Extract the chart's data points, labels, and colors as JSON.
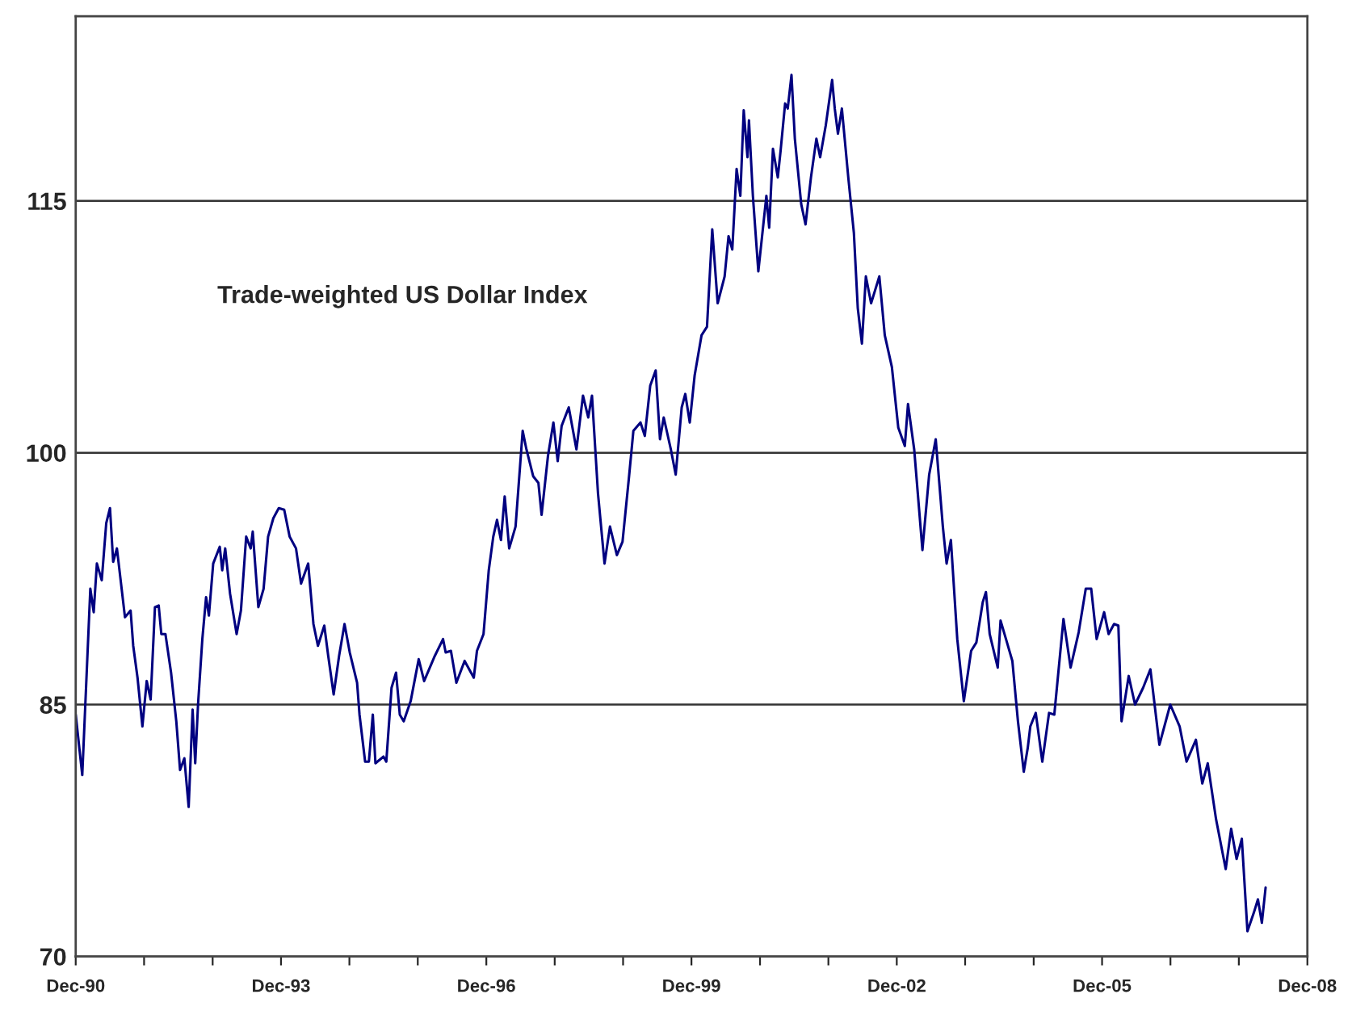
{
  "chart_data": {
    "type": "line",
    "title": "Trade-weighted US Dollar Index",
    "x": [
      "1990-12-01",
      "1991-01-05",
      "1991-02-17",
      "1991-03-07",
      "1991-03-24",
      "1991-04-19",
      "1991-05-13",
      "1991-06-02",
      "1991-06-19",
      "1991-07-09",
      "1991-08-21",
      "1991-09-20",
      "1991-10-04",
      "1991-10-27",
      "1991-11-22",
      "1991-12-15",
      "1992-01-05",
      "1992-01-28",
      "1992-02-17",
      "1992-03-02",
      "1992-03-24",
      "1992-04-23",
      "1992-05-21",
      "1992-06-10",
      "1992-07-03",
      "1992-07-26",
      "1992-08-16",
      "1992-08-30",
      "1992-09-14",
      "1992-10-07",
      "1992-10-27",
      "1992-11-11",
      "1992-12-04",
      "1993-01-08",
      "1993-01-21",
      "1993-02-06",
      "1993-03-04",
      "1993-04-08",
      "1993-05-01",
      "1993-05-29",
      "1993-06-22",
      "1993-07-03",
      "1993-08-02",
      "1993-08-30",
      "1993-09-23",
      "1993-10-21",
      "1993-11-19",
      "1993-12-18",
      "1994-01-16",
      "1994-02-19",
      "1994-03-18",
      "1994-04-25",
      "1994-05-23",
      "1994-06-16",
      "1994-07-20",
      "1994-08-10",
      "1994-09-08",
      "1994-10-07",
      "1994-11-05",
      "1994-12-03",
      "1995-01-11",
      "1995-01-24",
      "1995-02-23",
      "1995-03-15",
      "1995-04-05",
      "1995-04-19",
      "1995-06-01",
      "1995-06-16",
      "1995-07-14",
      "1995-08-07",
      "1995-08-27",
      "1995-09-17",
      "1995-10-24",
      "1995-12-06",
      "1996-01-04",
      "1996-03-01",
      "1996-04-14",
      "1996-04-28",
      "1996-05-26",
      "1996-06-24",
      "1996-08-07",
      "1996-09-25",
      "1996-10-12",
      "1996-11-16",
      "1996-12-14",
      "1997-01-07",
      "1997-01-27",
      "1997-02-17",
      "1997-03-09",
      "1997-04-02",
      "1997-05-06",
      "1997-06-13",
      "1997-07-03",
      "1997-08-08",
      "1997-09-05",
      "1997-09-22",
      "1997-10-26",
      "1997-11-24",
      "1997-12-17",
      "1998-01-07",
      "1998-02-14",
      "1998-03-27",
      "1998-05-01",
      "1998-05-29",
      "1998-06-18",
      "1998-07-20",
      "1998-08-24",
      "1998-09-22",
      "1998-10-29",
      "1998-11-28",
      "1999-01-02",
      "1999-01-25",
      "1999-03-04",
      "1999-03-27",
      "1999-04-25",
      "1999-05-24",
      "1999-06-16",
      "1999-07-06",
      "1999-08-13",
      "1999-09-08",
      "1999-10-10",
      "1999-10-29",
      "1999-11-22",
      "1999-12-18",
      "2000-01-24",
      "2000-02-22",
      "2000-03-21",
      "2000-04-19",
      "2000-05-26",
      "2000-06-16",
      "2000-07-06",
      "2000-07-29",
      "2000-08-18",
      "2000-09-05",
      "2000-09-25",
      "2000-10-03",
      "2000-10-24",
      "2000-11-22",
      "2000-12-15",
      "2001-01-04",
      "2001-01-19",
      "2001-02-08",
      "2001-03-06",
      "2001-03-21",
      "2001-04-14",
      "2001-04-28",
      "2001-05-18",
      "2001-06-05",
      "2001-07-09",
      "2001-08-01",
      "2001-08-30",
      "2001-09-28",
      "2001-10-18",
      "2001-11-17",
      "2001-12-21",
      "2002-01-04",
      "2002-01-21",
      "2002-02-11",
      "2002-03-18",
      "2002-04-16",
      "2002-05-07",
      "2002-05-29",
      "2002-06-19",
      "2002-07-17",
      "2002-08-30",
      "2002-09-28",
      "2002-11-05",
      "2002-12-09",
      "2003-01-13",
      "2003-01-30",
      "2003-03-04",
      "2003-04-17",
      "2003-05-23",
      "2003-06-27",
      "2003-08-04",
      "2003-08-24",
      "2003-09-16",
      "2003-10-20",
      "2003-11-24",
      "2004-01-02",
      "2004-01-30",
      "2004-03-04",
      "2004-03-21",
      "2004-04-10",
      "2004-05-23",
      "2004-06-07",
      "2004-07-06",
      "2004-08-09",
      "2004-09-08",
      "2004-10-09",
      "2004-10-30",
      "2004-11-13",
      "2004-12-12",
      "2005-01-16",
      "2005-02-21",
      "2005-03-21",
      "2005-05-09",
      "2005-06-16",
      "2005-07-29",
      "2005-09-05",
      "2005-10-04",
      "2005-11-02",
      "2005-12-12",
      "2006-01-05",
      "2006-02-03",
      "2006-02-26",
      "2006-03-15",
      "2006-04-22",
      "2006-05-26",
      "2006-07-08",
      "2006-08-16",
      "2006-10-03",
      "2006-11-30",
      "2007-01-19",
      "2007-02-25",
      "2007-04-16",
      "2007-05-20",
      "2007-06-18",
      "2007-08-01",
      "2007-09-22",
      "2007-10-21",
      "2007-11-19",
      "2007-12-17",
      "2008-01-16",
      "2008-02-19",
      "2008-03-12",
      "2008-04-02",
      "2008-04-22"
    ],
    "series": [
      {
        "color": "#000080",
        "values": [
          84.4,
          80.8,
          91.9,
          90.5,
          93.4,
          92.4,
          95.8,
          96.7,
          93.5,
          94.3,
          90.2,
          90.6,
          88.5,
          86.6,
          83.7,
          86.4,
          85.3,
          90.8,
          90.9,
          89.2,
          89.2,
          86.9,
          84.0,
          81.1,
          81.8,
          78.9,
          84.7,
          81.5,
          85.0,
          88.9,
          91.4,
          90.3,
          93.4,
          94.4,
          93.0,
          94.3,
          91.6,
          89.2,
          90.6,
          95.0,
          94.3,
          95.3,
          90.8,
          91.9,
          95.0,
          96.1,
          96.7,
          96.6,
          95.0,
          94.3,
          92.2,
          93.4,
          89.8,
          88.5,
          89.7,
          87.9,
          85.6,
          87.9,
          89.8,
          88.1,
          86.3,
          84.4,
          81.6,
          81.6,
          84.4,
          81.5,
          81.9,
          81.6,
          86.0,
          86.9,
          84.4,
          84.0,
          85.2,
          87.7,
          86.4,
          87.9,
          88.9,
          88.1,
          88.2,
          86.3,
          87.6,
          86.6,
          88.2,
          89.2,
          93.0,
          95.0,
          96.0,
          94.8,
          97.4,
          94.3,
          95.6,
          101.3,
          100.2,
          98.6,
          98.2,
          96.3,
          99.8,
          101.8,
          99.5,
          101.6,
          102.7,
          100.2,
          103.4,
          102.1,
          103.4,
          97.6,
          93.4,
          95.6,
          93.9,
          94.7,
          98.6,
          101.3,
          101.8,
          101.0,
          104.0,
          104.9,
          100.8,
          102.1,
          100.2,
          98.7,
          102.7,
          103.5,
          101.8,
          104.6,
          107.0,
          107.5,
          113.3,
          108.9,
          110.5,
          112.9,
          112.1,
          116.9,
          115.3,
          120.4,
          117.6,
          119.8,
          115.3,
          110.8,
          113.2,
          115.3,
          113.4,
          118.1,
          116.4,
          118.0,
          120.8,
          120.5,
          122.5,
          118.7,
          114.8,
          113.6,
          116.4,
          118.7,
          117.6,
          119.5,
          122.2,
          120.5,
          119.0,
          120.5,
          116.3,
          113.1,
          108.6,
          106.5,
          110.5,
          108.9,
          110.5,
          107.0,
          105.1,
          101.5,
          100.4,
          102.9,
          100.2,
          94.2,
          98.7,
          100.8,
          95.6,
          93.4,
          94.8,
          88.9,
          85.2,
          88.2,
          88.7,
          91.1,
          91.7,
          89.2,
          87.2,
          90.0,
          88.9,
          87.6,
          84.0,
          81.0,
          82.4,
          83.7,
          84.5,
          81.6,
          84.5,
          84.4,
          90.1,
          87.2,
          89.3,
          91.9,
          91.9,
          88.9,
          90.5,
          89.2,
          89.8,
          89.7,
          84.0,
          86.7,
          85.0,
          86.0,
          87.1,
          82.6,
          85.0,
          83.7,
          81.6,
          82.9,
          80.3,
          81.5,
          78.2,
          75.2,
          77.6,
          75.8,
          77.0,
          71.5,
          72.6,
          73.4,
          72.0,
          74.1
        ]
      }
    ],
    "xlim": [
      "1990-12-01",
      "2008-12-01"
    ],
    "xticks": [
      {
        "value": "1990-12-01",
        "label": "Dec-90"
      },
      {
        "value": "1991-12-01",
        "label": null
      },
      {
        "value": "1992-12-01",
        "label": null
      },
      {
        "value": "1993-12-01",
        "label": "Dec-93"
      },
      {
        "value": "1994-12-01",
        "label": null
      },
      {
        "value": "1995-12-01",
        "label": null
      },
      {
        "value": "1996-12-01",
        "label": "Dec-96"
      },
      {
        "value": "1997-12-01",
        "label": null
      },
      {
        "value": "1998-12-01",
        "label": null
      },
      {
        "value": "1999-12-01",
        "label": "Dec-99"
      },
      {
        "value": "2000-12-01",
        "label": null
      },
      {
        "value": "2001-12-01",
        "label": null
      },
      {
        "value": "2002-12-01",
        "label": "Dec-02"
      },
      {
        "value": "2003-12-01",
        "label": null
      },
      {
        "value": "2004-12-01",
        "label": null
      },
      {
        "value": "2005-12-01",
        "label": "Dec-05"
      },
      {
        "value": "2006-12-01",
        "label": null
      },
      {
        "value": "2007-12-01",
        "label": null
      },
      {
        "value": "2008-12-01",
        "label": "Dec-08"
      }
    ],
    "ylim": [
      70,
      126
    ],
    "yticks": [
      70,
      85,
      100,
      115
    ],
    "grid": "y",
    "marker": "none",
    "line_style": "solid"
  }
}
